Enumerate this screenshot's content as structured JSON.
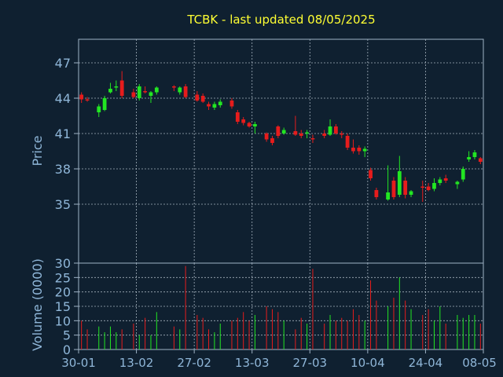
{
  "chart_data": {
    "type": "candlestick",
    "title": "TCBK - last updated 08/05/2025",
    "price_panel": {
      "ylabel": "Price",
      "ylim": [
        30,
        49
      ],
      "yticks": [
        30,
        35,
        38,
        41,
        44,
        47
      ],
      "up_color": "#22e622",
      "down_color": "#e61c1c"
    },
    "volume_panel": {
      "ylabel": "Volume (0000)",
      "ylim": [
        0,
        30
      ],
      "yticks": [
        0,
        5,
        10,
        15,
        20,
        25
      ]
    },
    "x_ticks": [
      "30-01",
      "13-02",
      "27-02",
      "13-03",
      "27-03",
      "10-04",
      "24-04",
      "08-05"
    ],
    "x_tick_index": [
      0,
      10,
      20,
      30,
      40,
      50,
      60,
      70
    ],
    "candles": [
      {
        "o": 44.3,
        "h": 44.5,
        "l": 43.6,
        "c": 43.9,
        "v": 10
      },
      {
        "o": 43.9,
        "h": 44.1,
        "l": 43.7,
        "c": 43.8,
        "v": 7
      },
      {
        "o": null,
        "h": null,
        "l": null,
        "c": null,
        "v": 0
      },
      {
        "o": 42.8,
        "h": 43.5,
        "l": 42.4,
        "c": 43.3,
        "v": 8
      },
      {
        "o": 43.0,
        "h": 44.2,
        "l": 42.9,
        "c": 44.0,
        "v": 6
      },
      {
        "o": 44.5,
        "h": 45.3,
        "l": 44.4,
        "c": 44.8,
        "v": 8
      },
      {
        "o": 44.9,
        "h": 45.5,
        "l": 44.6,
        "c": 45.0,
        "v": 6
      },
      {
        "o": 45.5,
        "h": 46.3,
        "l": 44.0,
        "c": 44.2,
        "v": 7
      },
      {
        "o": null,
        "h": null,
        "l": null,
        "c": null,
        "v": 0
      },
      {
        "o": 44.5,
        "h": 44.8,
        "l": 44.0,
        "c": 44.1,
        "v": 9
      },
      {
        "o": 44.0,
        "h": 45.2,
        "l": 43.8,
        "c": 45.0,
        "v": 5
      },
      {
        "o": 44.6,
        "h": 45.0,
        "l": 44.4,
        "c": 44.5,
        "v": 11
      },
      {
        "o": 44.2,
        "h": 44.6,
        "l": 43.6,
        "c": 44.5,
        "v": 5
      },
      {
        "o": 44.5,
        "h": 45.0,
        "l": 44.3,
        "c": 44.9,
        "v": 13
      },
      {
        "o": null,
        "h": null,
        "l": null,
        "c": null,
        "v": 0
      },
      {
        "o": null,
        "h": null,
        "l": null,
        "c": null,
        "v": 0
      },
      {
        "o": 45.0,
        "h": 45.1,
        "l": 44.6,
        "c": 44.9,
        "v": 8
      },
      {
        "o": 44.5,
        "h": 45.0,
        "l": 44.3,
        "c": 44.9,
        "v": 7
      },
      {
        "o": 45.0,
        "h": 45.2,
        "l": 44.0,
        "c": 44.1,
        "v": 29
      },
      {
        "o": null,
        "h": null,
        "l": null,
        "c": null,
        "v": 0
      },
      {
        "o": 44.3,
        "h": 44.6,
        "l": 43.7,
        "c": 43.8,
        "v": 12
      },
      {
        "o": 44.2,
        "h": 44.4,
        "l": 43.6,
        "c": 43.7,
        "v": 11
      },
      {
        "o": 43.5,
        "h": 43.7,
        "l": 43.0,
        "c": 43.3,
        "v": 7
      },
      {
        "o": 43.2,
        "h": 43.7,
        "l": 43.0,
        "c": 43.5,
        "v": 6
      },
      {
        "o": 43.4,
        "h": 43.9,
        "l": 43.2,
        "c": 43.7,
        "v": 9
      },
      {
        "o": null,
        "h": null,
        "l": null,
        "c": null,
        "v": 0
      },
      {
        "o": 43.8,
        "h": 44.0,
        "l": 43.1,
        "c": 43.3,
        "v": 10
      },
      {
        "o": 42.8,
        "h": 43.0,
        "l": 41.8,
        "c": 42.0,
        "v": 11
      },
      {
        "o": 42.2,
        "h": 42.4,
        "l": 41.7,
        "c": 41.9,
        "v": 13
      },
      {
        "o": 41.9,
        "h": 42.0,
        "l": 41.5,
        "c": 41.6,
        "v": 10
      },
      {
        "o": 41.6,
        "h": 42.0,
        "l": 41.0,
        "c": 41.8,
        "v": 12
      },
      {
        "o": null,
        "h": null,
        "l": null,
        "c": null,
        "v": 0
      },
      {
        "o": 41.0,
        "h": 41.1,
        "l": 40.3,
        "c": 40.5,
        "v": 15
      },
      {
        "o": 40.6,
        "h": 40.8,
        "l": 40.0,
        "c": 40.2,
        "v": 14
      },
      {
        "o": 41.6,
        "h": 41.7,
        "l": 40.6,
        "c": 40.8,
        "v": 13
      },
      {
        "o": 41.0,
        "h": 41.5,
        "l": 40.9,
        "c": 41.3,
        "v": 10
      },
      {
        "o": null,
        "h": null,
        "l": null,
        "c": null,
        "v": 0
      },
      {
        "o": 41.2,
        "h": 42.5,
        "l": 40.8,
        "c": 40.9,
        "v": 7
      },
      {
        "o": 41.0,
        "h": 41.3,
        "l": 40.6,
        "c": 40.8,
        "v": 11
      },
      {
        "o": 41.0,
        "h": 41.3,
        "l": 40.6,
        "c": 41.1,
        "v": 9
      },
      {
        "o": 40.6,
        "h": 40.9,
        "l": 40.2,
        "c": 40.5,
        "v": 28
      },
      {
        "o": null,
        "h": null,
        "l": null,
        "c": null,
        "v": 0
      },
      {
        "o": 41.0,
        "h": 41.3,
        "l": 40.6,
        "c": 40.8,
        "v": 9
      },
      {
        "o": 40.9,
        "h": 42.2,
        "l": 40.8,
        "c": 41.6,
        "v": 12
      },
      {
        "o": 41.6,
        "h": 41.8,
        "l": 40.9,
        "c": 41.0,
        "v": 10
      },
      {
        "o": 41.0,
        "h": 41.2,
        "l": 40.6,
        "c": 40.9,
        "v": 11
      },
      {
        "o": 40.8,
        "h": 41.0,
        "l": 39.6,
        "c": 39.8,
        "v": 10
      },
      {
        "o": 39.8,
        "h": 40.5,
        "l": 39.3,
        "c": 39.5,
        "v": 14
      },
      {
        "o": 39.8,
        "h": 40.0,
        "l": 39.2,
        "c": 39.5,
        "v": 12
      },
      {
        "o": 39.5,
        "h": 39.9,
        "l": 39.0,
        "c": 39.7,
        "v": 10
      },
      {
        "o": 37.9,
        "h": 38.1,
        "l": 37.0,
        "c": 37.2,
        "v": 24
      },
      {
        "o": 36.2,
        "h": 36.4,
        "l": 35.4,
        "c": 35.6,
        "v": 17
      },
      {
        "o": null,
        "h": null,
        "l": null,
        "c": null,
        "v": 0
      },
      {
        "o": 35.4,
        "h": 38.3,
        "l": 35.3,
        "c": 36.0,
        "v": 15
      },
      {
        "o": 37.0,
        "h": 37.3,
        "l": 35.4,
        "c": 35.6,
        "v": 18
      },
      {
        "o": 35.8,
        "h": 39.1,
        "l": 35.6,
        "c": 37.8,
        "v": 25
      },
      {
        "o": 37.0,
        "h": 37.3,
        "l": 35.5,
        "c": 35.8,
        "v": 17
      },
      {
        "o": 35.8,
        "h": 36.2,
        "l": 35.6,
        "c": 36.1,
        "v": 14
      },
      {
        "o": null,
        "h": null,
        "l": null,
        "c": null,
        "v": 0
      },
      {
        "o": 36.5,
        "h": 37.0,
        "l": 35.2,
        "c": 36.4,
        "v": 12
      },
      {
        "o": 36.5,
        "h": 36.8,
        "l": 36.1,
        "c": 36.2,
        "v": 14
      },
      {
        "o": 36.3,
        "h": 37.2,
        "l": 36.1,
        "c": 36.8,
        "v": 10
      },
      {
        "o": 36.8,
        "h": 37.3,
        "l": 36.6,
        "c": 37.1,
        "v": 15
      },
      {
        "o": 37.2,
        "h": 37.5,
        "l": 36.8,
        "c": 37.0,
        "v": 9
      },
      {
        "o": null,
        "h": null,
        "l": null,
        "c": null,
        "v": 0
      },
      {
        "o": 36.7,
        "h": 37.0,
        "l": 36.3,
        "c": 36.9,
        "v": 12
      },
      {
        "o": 37.1,
        "h": 38.2,
        "l": 36.9,
        "c": 38.0,
        "v": 11
      },
      {
        "o": 38.8,
        "h": 39.5,
        "l": 38.6,
        "c": 39.0,
        "v": 12
      },
      {
        "o": 39.0,
        "h": 39.6,
        "l": 38.8,
        "c": 39.4,
        "v": 12
      },
      {
        "o": 38.9,
        "h": 39.0,
        "l": 38.4,
        "c": 38.6,
        "v": 9
      }
    ]
  }
}
